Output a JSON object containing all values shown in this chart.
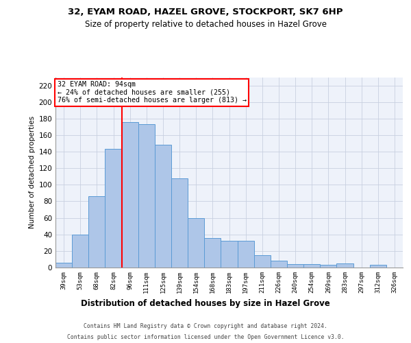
{
  "title1": "32, EYAM ROAD, HAZEL GROVE, STOCKPORT, SK7 6HP",
  "title2": "Size of property relative to detached houses in Hazel Grove",
  "xlabel": "Distribution of detached houses by size in Hazel Grove",
  "ylabel": "Number of detached properties",
  "categories": [
    "39sqm",
    "53sqm",
    "68sqm",
    "82sqm",
    "96sqm",
    "111sqm",
    "125sqm",
    "139sqm",
    "154sqm",
    "168sqm",
    "183sqm",
    "197sqm",
    "211sqm",
    "226sqm",
    "240sqm",
    "254sqm",
    "269sqm",
    "283sqm",
    "297sqm",
    "312sqm",
    "326sqm"
  ],
  "values": [
    6,
    40,
    86,
    143,
    176,
    173,
    148,
    108,
    60,
    36,
    32,
    32,
    15,
    8,
    4,
    4,
    3,
    5,
    0,
    3,
    0
  ],
  "bar_color": "#aec6e8",
  "bar_edge_color": "#5b9bd5",
  "vline_x_index": 4,
  "vline_color": "red",
  "annotation_text": "32 EYAM ROAD: 94sqm\n← 24% of detached houses are smaller (255)\n76% of semi-detached houses are larger (813) →",
  "annotation_box_color": "white",
  "annotation_box_edge": "red",
  "ylim": [
    0,
    230
  ],
  "yticks": [
    0,
    20,
    40,
    60,
    80,
    100,
    120,
    140,
    160,
    180,
    200,
    220
  ],
  "footer1": "Contains HM Land Registry data © Crown copyright and database right 2024.",
  "footer2": "Contains public sector information licensed under the Open Government Licence v3.0.",
  "bg_color": "#eef2fa",
  "grid_color": "#c8d0e0"
}
